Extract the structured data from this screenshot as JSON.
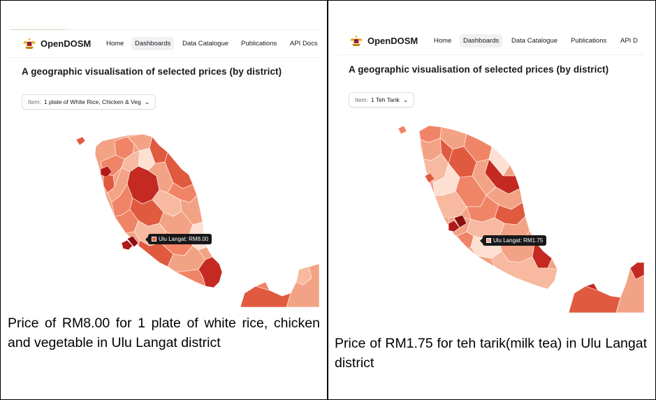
{
  "panels": [
    {
      "nav": {
        "brand": "OpenDOSM",
        "items": [
          "Home",
          "Dashboards",
          "Data Catalogue",
          "Publications",
          "API Docs"
        ],
        "active_index": 1
      },
      "page_title": "A geographic visualisation of selected prices (by district)",
      "item_select": {
        "label": "Item:",
        "value": "1 plate of White Rice, Chicken & Veg"
      },
      "tooltip": {
        "text": "Ulu Langat: RM8.00",
        "swatch_color": "#e05a3f"
      },
      "caption": "Price of RM8.00 for 1 plate of white rice, chicken and vegetable in Ulu Langat district"
    },
    {
      "nav": {
        "brand": "OpenDOSM",
        "items": [
          "Home",
          "Dashboards",
          "Data Catalogue",
          "Publications",
          "API D"
        ],
        "active_index": 1
      },
      "page_title": "A geographic visualisation of selected prices (by district)",
      "item_select": {
        "label": "Item:",
        "value": "1 Teh Tarik"
      },
      "tooltip": {
        "text": "Ulu Langat: RM1.75",
        "swatch_color": "#f4a582"
      },
      "caption": "Price of RM1.75 for teh tarik(milk tea) in Ulu Langat district"
    }
  ],
  "colors": {
    "choropleth_light": "#fde0d2",
    "choropleth_mid": "#f08466",
    "choropleth_dark": "#b01a1a",
    "nav_active_bg": "#f1f1f3"
  }
}
